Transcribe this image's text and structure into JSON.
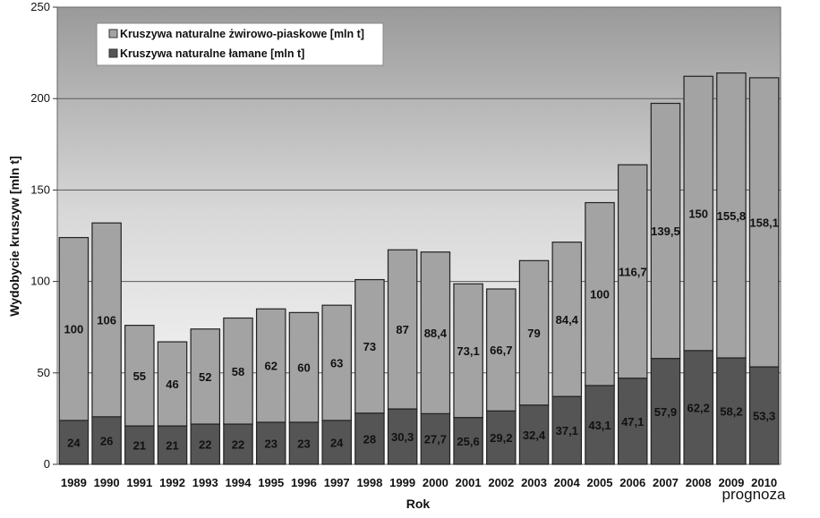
{
  "chart_data": {
    "type": "bar",
    "stacked": true,
    "title": "",
    "xlabel": "Rok",
    "ylabel": "Wydobycie kruszyw [mln t]",
    "ylim": [
      0,
      250
    ],
    "yticks": [
      "0",
      "50",
      "100",
      "150",
      "200",
      "250"
    ],
    "grid": true,
    "legend_position": "top-left",
    "note": "prognoza",
    "categories": [
      "1989",
      "1990",
      "1991",
      "1992",
      "1993",
      "1994",
      "1995",
      "1996",
      "1997",
      "1998",
      "1999",
      "2000",
      "2001",
      "2002",
      "2003",
      "2004",
      "2005",
      "2006",
      "2007",
      "2008",
      "2009",
      "2010"
    ],
    "series": [
      {
        "name": "Kruszywa naturalne łamane [mln t]",
        "color": "#555555",
        "values": [
          24,
          26,
          21,
          21,
          22,
          22,
          23,
          23,
          24,
          28,
          30.3,
          27.7,
          25.6,
          29.2,
          32.4,
          37.1,
          43.1,
          47.1,
          57.9,
          62.2,
          58.2,
          53.3
        ],
        "labels": [
          "24",
          "26",
          "21",
          "21",
          "22",
          "22",
          "23",
          "23",
          "24",
          "28",
          "30,3",
          "27,7",
          "25,6",
          "29,2",
          "32,4",
          "37,1",
          "43,1",
          "47,1",
          "57,9",
          "62,2",
          "58,2",
          "53,3"
        ]
      },
      {
        "name": "Kruszywa naturalne żwirowo-piaskowe [mln t]",
        "color": "#a3a3a3",
        "values": [
          100,
          106,
          55,
          46,
          52,
          58,
          62,
          60,
          63,
          73,
          87,
          88.4,
          73.1,
          66.7,
          79,
          84.4,
          100,
          116.7,
          139.5,
          150,
          155.8,
          158.1
        ],
        "labels": [
          "100",
          "106",
          "55",
          "46",
          "52",
          "58",
          "62",
          "60",
          "63",
          "73",
          "87",
          "88,4",
          "73,1",
          "66,7",
          "79",
          "84,4",
          "100",
          "116,7",
          "139,5",
          "150",
          "155,8",
          "158,1"
        ]
      }
    ]
  }
}
